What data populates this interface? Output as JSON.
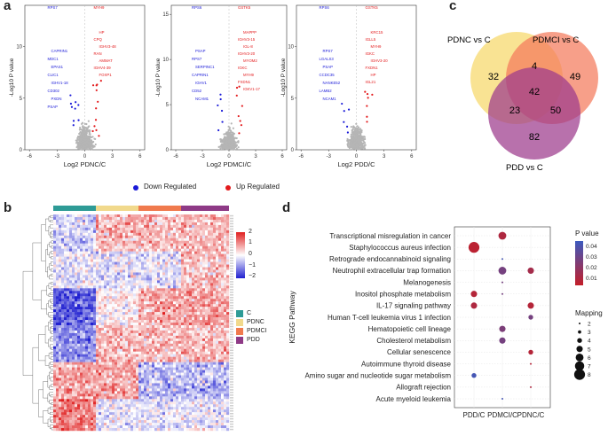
{
  "panels": {
    "a": "a",
    "b": "b",
    "c": "c",
    "d": "d"
  },
  "volcano": {
    "y_label": "-Log10 P value",
    "legend": {
      "down_label": "Down Regulated",
      "up_label": "Up Regulated",
      "down_color": "#1a1ad8",
      "up_color": "#e31a1c",
      "ns_color": "#b5b5b5"
    },
    "plots": [
      {
        "x_label": "Log2 PDNC/C",
        "x_ticks": [
          "-6",
          "-3",
          "0",
          "3",
          "6"
        ],
        "y_ticks": [
          "0",
          "5",
          "10"
        ],
        "chart_data": {
          "type": "scatter",
          "xlim": [
            -6.5,
            6.5
          ],
          "ylim": [
            0,
            14
          ],
          "labels_down": [
            "RPS7",
            "CAPRIN1",
            "MDC1",
            "EPAS1",
            "CLIC1",
            "IGHV1-18",
            "CD302",
            "PXDN",
            "PSAP"
          ],
          "labels_up": [
            "MYH9",
            "HP",
            "CPQ",
            "IGHV3-48",
            "RAN",
            "AMMAT",
            "IGHV4-39",
            "FOXP1"
          ]
        }
      },
      {
        "x_label": "Log2 PDMCI/C",
        "x_ticks": [
          "-6",
          "-3",
          "0",
          "3",
          "6"
        ],
        "y_ticks": [
          "0",
          "5",
          "10",
          "15"
        ],
        "chart_data": {
          "type": "scatter",
          "xlim": [
            -6.5,
            6.5
          ],
          "ylim": [
            0,
            16
          ],
          "labels_down": [
            "RPS6",
            "PSAP",
            "RPS7",
            "SERPINC1",
            "CAPRIN1",
            "IGHV1",
            "CD52",
            "NCAM1"
          ],
          "labels_up": [
            "GSTK5",
            "MAPPP",
            "IGHV3-15",
            "IGL-8",
            "IGHV3-20",
            "MYOM2",
            "IGKC",
            "MYH9",
            "FXDN1",
            "IGKV1-17"
          ]
        }
      },
      {
        "x_label": "Log2 PDD/C",
        "x_ticks": [
          "-6",
          "-3",
          "0",
          "3",
          "6"
        ],
        "y_ticks": [
          "0",
          "5",
          "10"
        ],
        "chart_data": {
          "type": "scatter",
          "xlim": [
            -6.5,
            6.5
          ],
          "ylim": [
            0,
            14
          ],
          "labels_down": [
            "RPS6",
            "RPS7",
            "LGALS3",
            "PSAP",
            "CCDC35",
            "NANKE52",
            "LAMB2",
            "NCAM1"
          ],
          "labels_up": [
            "GSTK5",
            "KRC15",
            "IGLL5",
            "MYH9",
            "IGKC",
            "IGHV3-20",
            "FXDN1",
            "HP",
            "IGL21"
          ]
        }
      }
    ]
  },
  "heatmap": {
    "scale_ticks": [
      "2",
      "1",
      "0",
      "−1",
      "−2"
    ],
    "groups": [
      {
        "name": "C",
        "color": "#2e9b96"
      },
      {
        "name": "PDNC",
        "color": "#f1d98c"
      },
      {
        "name": "PDMCI",
        "color": "#f07a4d"
      },
      {
        "name": "PDD",
        "color": "#8e3a86"
      }
    ],
    "color_low": "#2020d0",
    "color_mid": "#ffffff",
    "color_high": "#e02020"
  },
  "venn": {
    "sets": [
      {
        "name": "PDNC vs C",
        "color": "#f6d86a"
      },
      {
        "name": "PDMCI vs C",
        "color": "#f47a5c"
      },
      {
        "name": "PDD vs C",
        "color": "#9c3a8c"
      }
    ],
    "regions": {
      "only_pdnc": "32",
      "pdnc_pdmci": "4",
      "only_pdmci": "49",
      "all": "42",
      "pdnc_pdd": "23",
      "pdmci_pdd": "50",
      "only_pdd": "82"
    }
  },
  "kegg": {
    "y_title": "KEGG Pathway",
    "x_categories": [
      "PDD/C",
      "PDMCI/C",
      "PDNC/C"
    ],
    "pathways": [
      "Transcriptional misregulation in cancer",
      "Staphylococcus aureus infection",
      "Retrograde endocannabinoid signaling",
      "Neutrophil extracellular trap formation",
      "Melanogenesis",
      "Inositol phosphate metabolism",
      "IL-17 signaling pathway",
      "Human T-cell leukemia virus 1 infection",
      "Hematopoietic cell lineage",
      "Cholesterol metabolism",
      "Cellular senescence",
      "Autoimmune thyroid disease",
      "Amino sugar and nucleotide sugar metabolism",
      "Allograft rejection",
      "Acute myeloid leukemia"
    ],
    "pvalue_title": "P value",
    "pvalue_ticks": [
      "0.04",
      "0.03",
      "0.02",
      "0.01"
    ],
    "mapping_title": "Mapping",
    "mapping_ticks": [
      "2",
      "3",
      "4",
      "5",
      "6",
      "7",
      "8"
    ],
    "chart_data": {
      "type": "scatter",
      "points": [
        {
          "pathway": "Transcriptional misregulation in cancer",
          "group": "PDMCI/C",
          "mapping": 6,
          "p": 0.012
        },
        {
          "pathway": "Staphylococcus aureus infection",
          "group": "PDD/C",
          "mapping": 8,
          "p": 0.008
        },
        {
          "pathway": "Retrograde endocannabinoid signaling",
          "group": "PDMCI/C",
          "mapping": 2,
          "p": 0.045
        },
        {
          "pathway": "Neutrophil extracellular trap formation",
          "group": "PDMCI/C",
          "mapping": 6,
          "p": 0.03
        },
        {
          "pathway": "Neutrophil extracellular trap formation",
          "group": "PDNC/C",
          "mapping": 5,
          "p": 0.015
        },
        {
          "pathway": "Melanogenesis",
          "group": "PDMCI/C",
          "mapping": 2,
          "p": 0.03
        },
        {
          "pathway": "Inositol phosphate metabolism",
          "group": "PDD/C",
          "mapping": 5,
          "p": 0.01
        },
        {
          "pathway": "Inositol phosphate metabolism",
          "group": "PDMCI/C",
          "mapping": 2,
          "p": 0.03
        },
        {
          "pathway": "IL-17 signaling pathway",
          "group": "PDD/C",
          "mapping": 5,
          "p": 0.012
        },
        {
          "pathway": "IL-17 signaling pathway",
          "group": "PDNC/C",
          "mapping": 5,
          "p": 0.01
        },
        {
          "pathway": "Human T-cell leukemia virus 1 infection",
          "group": "PDNC/C",
          "mapping": 4,
          "p": 0.03
        },
        {
          "pathway": "Hematopoietic cell lineage",
          "group": "PDMCI/C",
          "mapping": 5,
          "p": 0.028
        },
        {
          "pathway": "Cholesterol metabolism",
          "group": "PDMCI/C",
          "mapping": 5,
          "p": 0.03
        },
        {
          "pathway": "Cellular senescence",
          "group": "PDNC/C",
          "mapping": 4,
          "p": 0.01
        },
        {
          "pathway": "Autoimmune thyroid disease",
          "group": "PDNC/C",
          "mapping": 2,
          "p": 0.01
        },
        {
          "pathway": "Amino sugar and nucleotide sugar metabolism",
          "group": "PDD/C",
          "mapping": 4,
          "p": 0.045
        },
        {
          "pathway": "Allograft rejection",
          "group": "PDNC/C",
          "mapping": 2,
          "p": 0.012
        },
        {
          "pathway": "Acute myeloid leukemia",
          "group": "PDMCI/C",
          "mapping": 2,
          "p": 0.045
        }
      ],
      "p_range": [
        0.005,
        0.048
      ],
      "mapping_range": [
        2,
        8
      ]
    }
  }
}
